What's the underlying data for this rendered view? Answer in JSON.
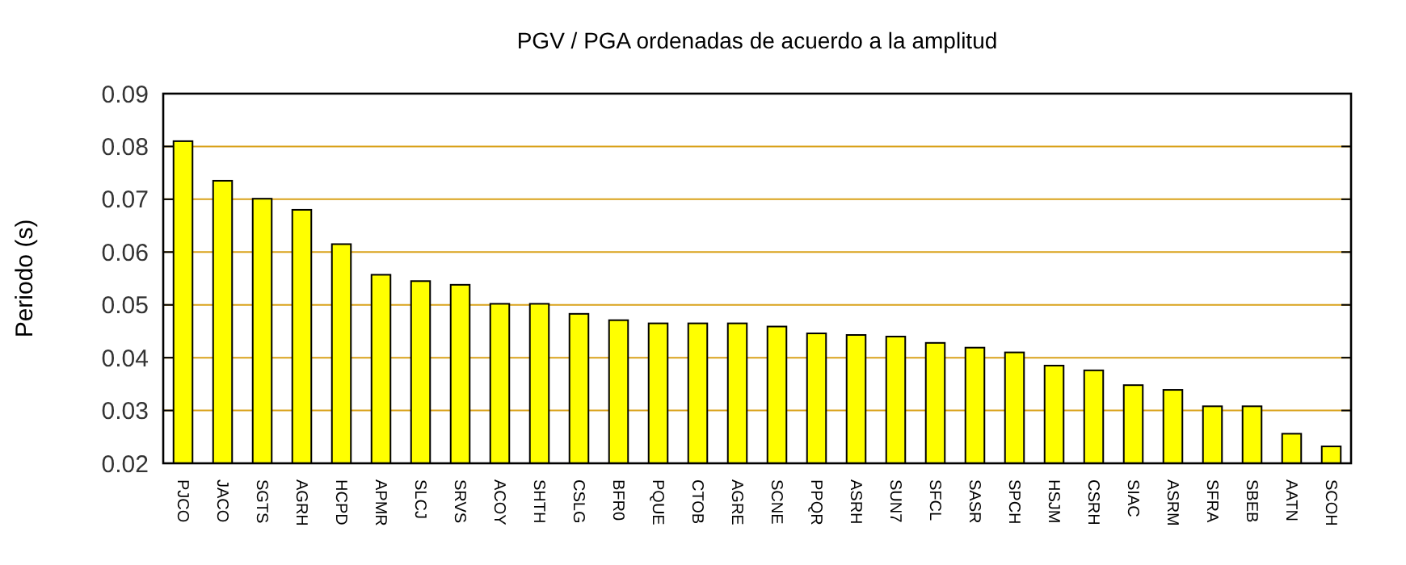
{
  "chart_data": {
    "type": "bar",
    "title": "PGV / PGA ordenadas de acuerdo a la amplitud",
    "ylabel": "Periodo (s)",
    "categories": [
      "PJCO",
      "JACO",
      "SGTS",
      "AGRH",
      "HCPD",
      "APMR",
      "SLCJ",
      "SRVS",
      "ACOY",
      "SHTH",
      "CSLG",
      "BFR0",
      "PQUE",
      "CTOB",
      "AGRE",
      "SCNE",
      "PPQR",
      "ASRH",
      "SUN7",
      "SFCL",
      "SASR",
      "SPCH",
      "HSJM",
      "CSRH",
      "SIAC",
      "ASRM",
      "SFRA",
      "SBEB",
      "AATN",
      "SCOH"
    ],
    "values": [
      0.081,
      0.0735,
      0.0701,
      0.068,
      0.0615,
      0.0557,
      0.0545,
      0.0538,
      0.0502,
      0.0502,
      0.0483,
      0.0471,
      0.0465,
      0.0465,
      0.0465,
      0.0459,
      0.0446,
      0.0443,
      0.044,
      0.0428,
      0.0419,
      0.041,
      0.0385,
      0.0376,
      0.0348,
      0.0339,
      0.0308,
      0.0308,
      0.0256,
      0.0232
    ],
    "color": "#ffff00",
    "ylim": [
      0.02,
      0.09
    ],
    "yticks": [
      0.02,
      0.03,
      0.04,
      0.05,
      0.06,
      0.07,
      0.08,
      0.09
    ],
    "grid": "y"
  }
}
